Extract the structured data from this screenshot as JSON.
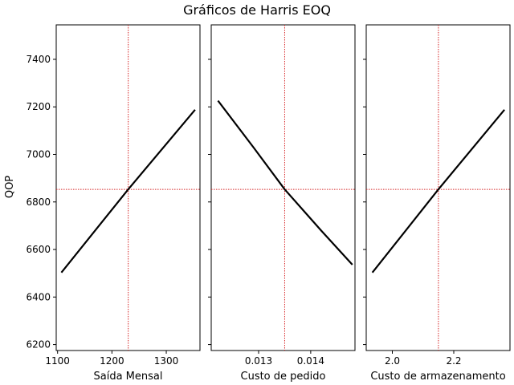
{
  "chart_data": {
    "title": "Gráficos de Harris EOQ",
    "type": "line",
    "shared_ylabel": "QOP",
    "ylim": [
      6175,
      7545
    ],
    "yticks": [
      6200,
      6400,
      6600,
      6800,
      7000,
      7200,
      7400
    ],
    "reference": {
      "y": 6853,
      "color": "#d62728",
      "style": "dotted"
    },
    "line_color": "#000000",
    "panels": [
      {
        "xlabel": "Saída Mensal",
        "xlim": [
          1097.5,
          1362
        ],
        "xticks": [
          1100,
          1200,
          1300
        ],
        "ref_x": 1230,
        "x": [
          1107,
          1230,
          1353
        ],
        "y": [
          6503,
          6853,
          7188
        ]
      },
      {
        "xlabel": "Custo de pedido",
        "xlim": [
          0.01209,
          0.01485
        ],
        "xticks": [
          0.013,
          0.014
        ],
        "xtick_labels": [
          "0.013",
          "0.014"
        ],
        "ref_x": 0.0135,
        "x": [
          0.01222,
          0.0129,
          0.0135,
          0.0142,
          0.0148
        ],
        "y": [
          7226,
          7030,
          6853,
          6680,
          6536
        ]
      },
      {
        "xlabel": "Custo de armazenamento",
        "xlim": [
          1.915,
          2.383
        ],
        "xticks": [
          2.0,
          2.2
        ],
        "xtick_labels": [
          "2.0",
          "2.2"
        ],
        "ref_x": 2.15,
        "x": [
          1.935,
          2.15,
          2.365
        ],
        "y": [
          6503,
          6853,
          7188
        ]
      }
    ]
  }
}
